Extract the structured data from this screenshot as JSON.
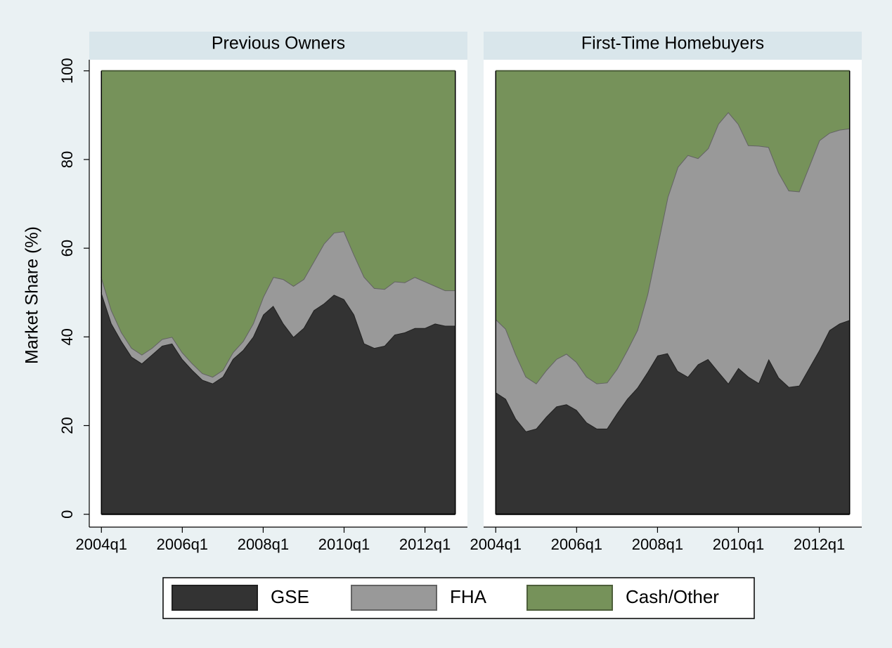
{
  "chart_data": [
    {
      "type": "area",
      "title": "Previous Owners",
      "ylabel": "Market Share (%)",
      "x": [
        2004,
        2004.25,
        2004.5,
        2004.75,
        2005,
        2005.25,
        2005.5,
        2005.75,
        2006,
        2006.25,
        2006.5,
        2006.75,
        2007,
        2007.25,
        2007.5,
        2007.75,
        2008,
        2008.25,
        2008.5,
        2008.75,
        2009,
        2009.25,
        2009.5,
        2009.75,
        2010,
        2010.25,
        2010.5,
        2010.75,
        2011,
        2011.25,
        2011.5,
        2011.75,
        2012,
        2012.25,
        2012.5,
        2012.75
      ],
      "xlim": [
        2003.7,
        2013.05
      ],
      "xticks": [
        {
          "value": 2004,
          "label": "2004q1"
        },
        {
          "value": 2006,
          "label": "2006q1"
        },
        {
          "value": 2008,
          "label": "2008q1"
        },
        {
          "value": 2010,
          "label": "2010q1"
        },
        {
          "value": 2012,
          "label": "2012q1"
        }
      ],
      "ylim": [
        -2.9,
        102.5
      ],
      "yticks": [
        0,
        20,
        40,
        60,
        80,
        100
      ],
      "series": [
        {
          "name": "GSE",
          "color": "#333333",
          "values": [
            50,
            43,
            39,
            35.5,
            34,
            36,
            38,
            38.5,
            35,
            32.5,
            30.3,
            29.5,
            31,
            35,
            37,
            40,
            45,
            47,
            43,
            40,
            42,
            46,
            47.5,
            49.5,
            48.5,
            45,
            38.5,
            37.5,
            38,
            40.5,
            41,
            42,
            42,
            43,
            42.5,
            42.5
          ]
        },
        {
          "name": "FHA",
          "color": "#999999",
          "values": [
            3.5,
            3,
            2,
            2,
            2,
            1.5,
            1.5,
            1.5,
            1.5,
            1.5,
            1.5,
            1.5,
            1.5,
            1.5,
            2,
            3,
            4,
            6.5,
            10,
            11.5,
            11,
            11,
            13.5,
            14,
            15.3,
            13.5,
            15,
            13.5,
            12.8,
            12,
            11.3,
            11.5,
            10.5,
            8.5,
            8,
            8
          ]
        },
        {
          "name": "Cash/Other",
          "color": "#76925a",
          "values": [
            46.5,
            54,
            59,
            62.5,
            64,
            62.5,
            60.5,
            60,
            63.5,
            66,
            68.2,
            69,
            67.5,
            63.5,
            61,
            57,
            51,
            46.5,
            47,
            48.5,
            47,
            43,
            39,
            36.5,
            36.2,
            41.5,
            46.5,
            49,
            49.2,
            47.5,
            47.7,
            46.5,
            47.5,
            48.5,
            49.5,
            49.5
          ]
        }
      ]
    },
    {
      "type": "area",
      "title": "First-Time Homebuyers",
      "x": [
        2004,
        2004.25,
        2004.5,
        2004.75,
        2005,
        2005.25,
        2005.5,
        2005.75,
        2006,
        2006.25,
        2006.5,
        2006.75,
        2007,
        2007.25,
        2007.5,
        2007.75,
        2008,
        2008.25,
        2008.5,
        2008.75,
        2009,
        2009.25,
        2009.5,
        2009.75,
        2010,
        2010.25,
        2010.5,
        2010.75,
        2011,
        2011.25,
        2011.5,
        2011.75,
        2012,
        2012.25,
        2012.5,
        2012.75
      ],
      "xlim": [
        2003.7,
        2013.05
      ],
      "xticks": [
        {
          "value": 2004,
          "label": "2004q1"
        },
        {
          "value": 2006,
          "label": "2006q1"
        },
        {
          "value": 2008,
          "label": "2008q1"
        },
        {
          "value": 2010,
          "label": "2010q1"
        },
        {
          "value": 2012,
          "label": "2012q1"
        }
      ],
      "ylim": [
        -2.9,
        102.5
      ],
      "series": [
        {
          "color": "#333333",
          "values": [
            27.5,
            26,
            21.5,
            18.7,
            19.3,
            22,
            24.3,
            24.8,
            23.5,
            20.7,
            19.3,
            19.3,
            22.8,
            26,
            28.5,
            32,
            35.8,
            36.3,
            32.3,
            31,
            33.8,
            35,
            32.2,
            29.5,
            33,
            31,
            29.6,
            35,
            30.8,
            28.7,
            29,
            33,
            37,
            41.5,
            43,
            43.8
          ]
        },
        {
          "color": "#999999",
          "values": [
            16.5,
            15.8,
            14.5,
            12.3,
            10.2,
            10.5,
            10.7,
            11.4,
            10.8,
            10.3,
            10.2,
            10.4,
            10,
            11,
            13,
            17.5,
            24.7,
            35.2,
            46,
            50,
            46.5,
            47.5,
            55.8,
            61.2,
            55,
            52.2,
            53.5,
            47.8,
            46.2,
            44.3,
            43.8,
            45.5,
            47.3,
            44.5,
            43.7,
            43.2
          ]
        },
        {
          "color": "#76925a",
          "values": [
            56,
            58.2,
            64,
            69,
            70.5,
            67.5,
            65,
            63.8,
            65.7,
            69,
            70.5,
            70.3,
            67.2,
            63,
            58.5,
            50.5,
            39.5,
            28.5,
            21.7,
            19,
            19.7,
            17.5,
            12,
            9.3,
            12,
            16.8,
            16.9,
            17.2,
            23,
            27,
            27.2,
            21.5,
            15.7,
            14,
            13.3,
            13
          ]
        }
      ]
    }
  ]
}
